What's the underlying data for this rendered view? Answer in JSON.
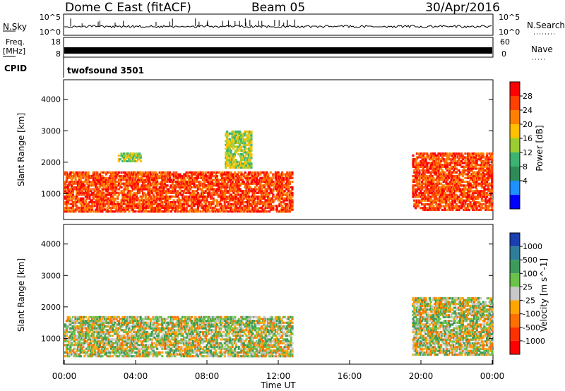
{
  "header": {
    "station": "Dome C East (fitACF)",
    "beam": "Beam 05",
    "date": "30/Apr/2016"
  },
  "strips": {
    "nsky_label": "N.Sky",
    "nsky_ticks": [
      "10^5",
      "10^0"
    ],
    "nsearch_label": "N.Search",
    "nsearch_ticks": [
      "10^5",
      "10^0"
    ],
    "freq_label_1": "Freq.",
    "freq_label_2": "[MHz]",
    "freq_ticks": [
      "18",
      "8"
    ],
    "nave_label": "Nave",
    "nave_ticks": [
      "60",
      "0"
    ],
    "cpid_label": "CPID",
    "cpid_value": "twofsound 3501"
  },
  "chart_data": [
    {
      "type": "heatmap",
      "name": "power",
      "ylabel": "Slant Range [km]",
      "ylim": [
        200,
        4600
      ],
      "yticks": [
        "1000",
        "2000",
        "3000",
        "4000"
      ],
      "xlim": [
        0,
        24
      ],
      "colorbar": {
        "label": "Power [dB]",
        "ticks": [
          "28",
          "24",
          "20",
          "16",
          "12",
          "8",
          "4"
        ],
        "colors": [
          "#ff0000",
          "#ff4000",
          "#ff8000",
          "#ffc000",
          "#9acd32",
          "#3cb371",
          "#2e8b57",
          "#1e90ff",
          "#0000ff"
        ]
      },
      "regions": [
        {
          "t0": 0.0,
          "t1": 12.8,
          "r0": 400,
          "r1": 1700,
          "level": "high"
        },
        {
          "t0": 19.5,
          "t1": 24.0,
          "r0": 450,
          "r1": 2300,
          "level": "high"
        },
        {
          "t0": 3.0,
          "t1": 4.3,
          "r0": 2000,
          "r1": 2300,
          "level": "mid"
        },
        {
          "t0": 9.0,
          "t1": 10.5,
          "r0": 1800,
          "r1": 3000,
          "level": "mid"
        }
      ]
    },
    {
      "type": "heatmap",
      "name": "velocity",
      "ylabel": "Slant Range [km]",
      "ylim": [
        200,
        4600
      ],
      "yticks": [
        "1000",
        "2000",
        "3000",
        "4000"
      ],
      "xlim": [
        0,
        24
      ],
      "xticks": [
        "00:00",
        "04:00",
        "08:00",
        "12:00",
        "16:00",
        "20:00",
        "00:00"
      ],
      "xlabel": "Time UT",
      "colorbar": {
        "label": "Velocity [m s^-1]",
        "ticks": [
          "1000",
          "500",
          "100",
          "25",
          "-25",
          "-100",
          "-500",
          "-1000"
        ],
        "colors": [
          "#1a3fb0",
          "#2e7d9a",
          "#3c9a5a",
          "#6ac248",
          "#c8c8c8",
          "#ffa500",
          "#ff7000",
          "#ff3000",
          "#ff0000"
        ]
      },
      "regions": [
        {
          "t0": 0.0,
          "t1": 12.8,
          "r0": 400,
          "r1": 1700,
          "level": "mixed"
        },
        {
          "t0": 19.5,
          "t1": 24.0,
          "r0": 450,
          "r1": 2300,
          "level": "mixed"
        }
      ]
    }
  ]
}
